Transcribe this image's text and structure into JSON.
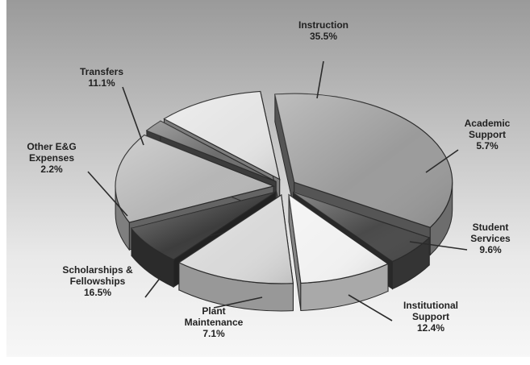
{
  "chart_data": {
    "type": "pie",
    "style": "3d-exploded",
    "legend": "none",
    "labels_outside": true,
    "slices": [
      {
        "label_lines": [
          "Instruction"
        ],
        "value": 35.5,
        "value_text": "35.5%",
        "color": "#9b9b9b"
      },
      {
        "label_lines": [
          "Academic",
          "Support"
        ],
        "value": 5.7,
        "value_text": "5.7%",
        "color": "#4a4a4a"
      },
      {
        "label_lines": [
          "Student",
          "Services"
        ],
        "value": 9.6,
        "value_text": "9.6%",
        "color": "#f1f1f1"
      },
      {
        "label_lines": [
          "Institutional",
          "Support"
        ],
        "value": 12.4,
        "value_text": "12.4%",
        "color": "#d9d9d9"
      },
      {
        "label_lines": [
          "Plant",
          "Maintenance"
        ],
        "value": 7.1,
        "value_text": "7.1%",
        "color": "#3d3d3d"
      },
      {
        "label_lines": [
          "Scholarships &",
          "Fellowships"
        ],
        "value": 16.5,
        "value_text": "16.5%",
        "color": "#b6b6b6"
      },
      {
        "label_lines": [
          "Other E&G",
          "Expenses"
        ],
        "value": 2.2,
        "value_text": "2.2%",
        "color": "#6d6d6d"
      },
      {
        "label_lines": [
          "Transfers"
        ],
        "value": 11.1,
        "value_text": "11.1%",
        "color": "#e4e4e4"
      }
    ]
  }
}
